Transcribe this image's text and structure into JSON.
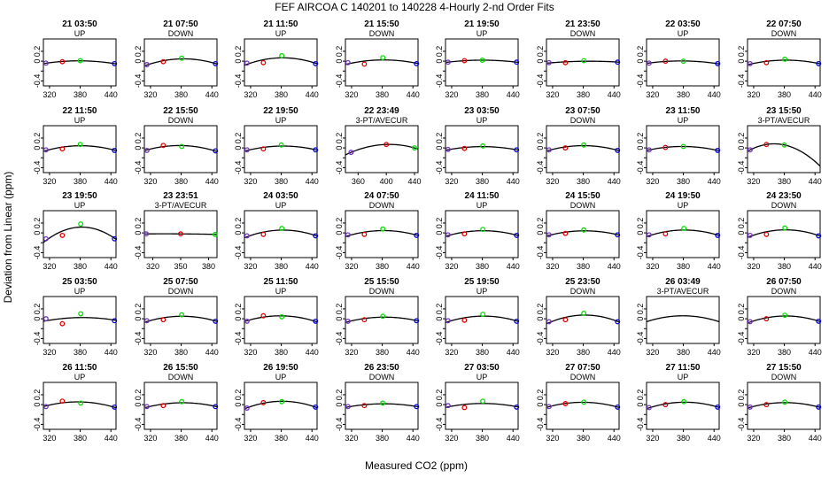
{
  "chart_data": {
    "type": "scatter",
    "title": "FEF   AIRCOA C   140201 to 140228   4-Hourly 2-nd Order Fits",
    "xlabel": "Measured CO2 (ppm)",
    "ylabel": "Deviation from Linear (ppm)",
    "ylim": [
      -0.5,
      0.45
    ],
    "yticks": [
      -0.4,
      -0.2,
      0.0,
      0.2
    ],
    "ytick_labels": [
      "-0.4",
      "",
      "0",
      "0.2"
    ],
    "default_xlim": [
      308,
      450
    ],
    "default_xticks": [
      320,
      380,
      440
    ],
    "point_colors": [
      "#7030c0",
      "#e00000",
      "#00dd00",
      "#0000cc"
    ],
    "grid": false,
    "panels": [
      {
        "title": "21 03:50",
        "note": "UP",
        "xlim": [
          308,
          450
        ],
        "xticks": [
          320,
          380,
          440
        ],
        "points": [
          [
            313,
            -0.04
          ],
          [
            345,
            -0.01
          ],
          [
            380,
            0.01
          ],
          [
            447,
            -0.05
          ]
        ]
      },
      {
        "title": "21 07:50",
        "note": "DOWN",
        "xlim": [
          308,
          450
        ],
        "xticks": [
          320,
          380,
          440
        ],
        "points": [
          [
            313,
            -0.07
          ],
          [
            345,
            -0.01
          ],
          [
            381,
            0.06
          ],
          [
            447,
            -0.05
          ]
        ]
      },
      {
        "title": "21 11:50",
        "note": "UP",
        "xlim": [
          308,
          450
        ],
        "xticks": [
          320,
          380,
          440
        ],
        "points": [
          [
            313,
            -0.04
          ],
          [
            345,
            -0.03
          ],
          [
            381,
            0.11
          ],
          [
            447,
            -0.05
          ]
        ]
      },
      {
        "title": "21 15:50",
        "note": "DOWN",
        "xlim": [
          308,
          450
        ],
        "xticks": [
          320,
          380,
          440
        ],
        "points": [
          [
            313,
            -0.03
          ],
          [
            345,
            -0.06
          ],
          [
            381,
            0.07
          ],
          [
            447,
            -0.05
          ]
        ]
      },
      {
        "title": "21 19:50",
        "note": "UP",
        "xlim": [
          308,
          450
        ],
        "xticks": [
          320,
          380,
          440
        ],
        "points": [
          [
            313,
            -0.02
          ],
          [
            345,
            0.01
          ],
          [
            380,
            0.02
          ],
          [
            447,
            -0.02
          ]
        ]
      },
      {
        "title": "21 23:50",
        "note": "DOWN",
        "xlim": [
          308,
          450
        ],
        "xticks": [
          320,
          380,
          440
        ],
        "points": [
          [
            313,
            -0.03
          ],
          [
            345,
            -0.03
          ],
          [
            381,
            0.01
          ],
          [
            447,
            -0.02
          ]
        ]
      },
      {
        "title": "22 03:50",
        "note": "UP",
        "xlim": [
          308,
          450
        ],
        "xticks": [
          320,
          380,
          440
        ],
        "points": [
          [
            313,
            -0.04
          ],
          [
            345,
            0.0
          ],
          [
            380,
            0.0
          ],
          [
            447,
            -0.05
          ]
        ]
      },
      {
        "title": "22 07:50",
        "note": "DOWN",
        "xlim": [
          308,
          450
        ],
        "xticks": [
          320,
          380,
          440
        ],
        "points": [
          [
            313,
            -0.05
          ],
          [
            345,
            -0.03
          ],
          [
            381,
            0.04
          ],
          [
            447,
            -0.05
          ]
        ]
      },
      {
        "title": "22 11:50",
        "note": "UP",
        "xlim": [
          308,
          450
        ],
        "xticks": [
          320,
          380,
          440
        ],
        "points": [
          [
            313,
            -0.04
          ],
          [
            345,
            -0.02
          ],
          [
            380,
            0.07
          ],
          [
            447,
            -0.05
          ]
        ]
      },
      {
        "title": "22 15:50",
        "note": "DOWN",
        "xlim": [
          308,
          450
        ],
        "xticks": [
          320,
          380,
          440
        ],
        "points": [
          [
            313,
            -0.05
          ],
          [
            345,
            0.05
          ],
          [
            381,
            0.03
          ],
          [
            447,
            -0.06
          ]
        ]
      },
      {
        "title": "22 19:50",
        "note": "UP",
        "xlim": [
          308,
          450
        ],
        "xticks": [
          320,
          380,
          440
        ],
        "points": [
          [
            313,
            -0.04
          ],
          [
            345,
            -0.02
          ],
          [
            380,
            0.06
          ],
          [
            447,
            -0.04
          ]
        ]
      },
      {
        "title": "22 23:49",
        "note": "3-PT/AVECUR",
        "xlim": [
          342,
          445
        ],
        "xticks": [
          360,
          400,
          440
        ],
        "points": [
          [
            350,
            -0.09
          ],
          [
            400,
            0.07
          ],
          [
            440,
            0.0
          ]
        ]
      },
      {
        "title": "23 03:50",
        "note": "UP",
        "xlim": [
          308,
          450
        ],
        "xticks": [
          320,
          380,
          440
        ],
        "points": [
          [
            313,
            -0.03
          ],
          [
            345,
            -0.01
          ],
          [
            381,
            0.04
          ],
          [
            447,
            -0.04
          ]
        ]
      },
      {
        "title": "23 07:50",
        "note": "DOWN",
        "xlim": [
          308,
          450
        ],
        "xticks": [
          320,
          380,
          440
        ],
        "points": [
          [
            313,
            -0.04
          ],
          [
            345,
            0.0
          ],
          [
            381,
            0.06
          ],
          [
            447,
            -0.05
          ]
        ]
      },
      {
        "title": "23 11:50",
        "note": "UP",
        "xlim": [
          308,
          450
        ],
        "xticks": [
          320,
          380,
          440
        ],
        "points": [
          [
            313,
            -0.04
          ],
          [
            345,
            0.01
          ],
          [
            380,
            0.03
          ],
          [
            447,
            -0.05
          ]
        ]
      },
      {
        "title": "23 15:50",
        "note": "3-PT/AVECUR",
        "xlim": [
          308,
          450
        ],
        "xticks": [
          320,
          380,
          440
        ],
        "points": [
          [
            313,
            -0.04
          ],
          [
            345,
            0.07
          ],
          [
            380,
            0.06
          ]
        ]
      },
      {
        "title": "23 19:50",
        "note": "UP",
        "xlim": [
          308,
          450
        ],
        "xticks": [
          320,
          380,
          440
        ],
        "points": [
          [
            313,
            -0.12
          ],
          [
            345,
            -0.05
          ],
          [
            381,
            0.18
          ],
          [
            447,
            -0.12
          ]
        ]
      },
      {
        "title": "23 23:51",
        "note": "3-PT/AVECUR",
        "xlim": [
          311,
          389
        ],
        "xticks": [
          320,
          350,
          380
        ],
        "points": [
          [
            313,
            -0.02
          ],
          [
            350,
            -0.02
          ],
          [
            387,
            -0.03
          ]
        ]
      },
      {
        "title": "24 03:50",
        "note": "UP",
        "xlim": [
          308,
          450
        ],
        "xticks": [
          320,
          380,
          440
        ],
        "points": [
          [
            313,
            -0.06
          ],
          [
            345,
            -0.03
          ],
          [
            381,
            0.09
          ],
          [
            447,
            -0.06
          ]
        ]
      },
      {
        "title": "24 07:50",
        "note": "DOWN",
        "xlim": [
          308,
          450
        ],
        "xticks": [
          320,
          380,
          440
        ],
        "points": [
          [
            313,
            -0.04
          ],
          [
            345,
            -0.03
          ],
          [
            381,
            0.08
          ],
          [
            447,
            -0.05
          ]
        ]
      },
      {
        "title": "24 11:50",
        "note": "UP",
        "xlim": [
          308,
          450
        ],
        "xticks": [
          320,
          380,
          440
        ],
        "points": [
          [
            313,
            -0.04
          ],
          [
            345,
            -0.02
          ],
          [
            381,
            0.07
          ],
          [
            447,
            -0.05
          ]
        ]
      },
      {
        "title": "24 15:50",
        "note": "DOWN",
        "xlim": [
          308,
          450
        ],
        "xticks": [
          320,
          380,
          440
        ],
        "points": [
          [
            313,
            -0.04
          ],
          [
            345,
            -0.01
          ],
          [
            381,
            0.06
          ],
          [
            447,
            -0.04
          ]
        ]
      },
      {
        "title": "24 19:50",
        "note": "UP",
        "xlim": [
          308,
          450
        ],
        "xticks": [
          320,
          380,
          440
        ],
        "points": [
          [
            313,
            -0.04
          ],
          [
            345,
            -0.02
          ],
          [
            381,
            0.09
          ],
          [
            447,
            -0.05
          ]
        ]
      },
      {
        "title": "24 23:50",
        "note": "DOWN",
        "xlim": [
          308,
          450
        ],
        "xticks": [
          320,
          380,
          440
        ],
        "points": [
          [
            313,
            -0.05
          ],
          [
            345,
            -0.03
          ],
          [
            381,
            0.1
          ],
          [
            447,
            -0.06
          ]
        ]
      },
      {
        "title": "25 03:50",
        "note": "UP",
        "xlim": [
          308,
          450
        ],
        "xticks": [
          320,
          380,
          440
        ],
        "points": [
          [
            313,
            0.0
          ],
          [
            345,
            -0.1
          ],
          [
            381,
            0.1
          ],
          [
            447,
            -0.04
          ]
        ]
      },
      {
        "title": "25 07:50",
        "note": "DOWN",
        "xlim": [
          308,
          450
        ],
        "xticks": [
          320,
          380,
          440
        ],
        "points": [
          [
            313,
            -0.04
          ],
          [
            345,
            -0.02
          ],
          [
            381,
            0.08
          ],
          [
            447,
            -0.05
          ]
        ]
      },
      {
        "title": "25 11:50",
        "note": "UP",
        "xlim": [
          308,
          450
        ],
        "xticks": [
          320,
          380,
          440
        ],
        "points": [
          [
            313,
            -0.05
          ],
          [
            345,
            0.06
          ],
          [
            381,
            0.04
          ],
          [
            447,
            -0.05
          ]
        ]
      },
      {
        "title": "25 15:50",
        "note": "DOWN",
        "xlim": [
          308,
          450
        ],
        "xticks": [
          320,
          380,
          440
        ],
        "points": [
          [
            313,
            -0.05
          ],
          [
            345,
            -0.02
          ],
          [
            381,
            0.05
          ],
          [
            447,
            -0.04
          ]
        ]
      },
      {
        "title": "25 19:50",
        "note": "UP",
        "xlim": [
          308,
          450
        ],
        "xticks": [
          320,
          380,
          440
        ],
        "points": [
          [
            313,
            -0.04
          ],
          [
            345,
            -0.03
          ],
          [
            381,
            0.09
          ],
          [
            447,
            -0.05
          ]
        ]
      },
      {
        "title": "25 23:50",
        "note": "DOWN",
        "xlim": [
          308,
          450
        ],
        "xticks": [
          320,
          380,
          440
        ],
        "points": [
          [
            313,
            -0.06
          ],
          [
            345,
            -0.02
          ],
          [
            381,
            0.11
          ],
          [
            447,
            -0.06
          ]
        ]
      },
      {
        "title": "26 03:49",
        "note": "3-PT/AVECUR",
        "xlim": [
          308,
          450
        ],
        "xticks": [
          320,
          380,
          440
        ],
        "points": []
      },
      {
        "title": "26 07:50",
        "note": "DOWN",
        "xlim": [
          308,
          450
        ],
        "xticks": [
          320,
          380,
          440
        ],
        "points": [
          [
            313,
            -0.06
          ],
          [
            345,
            0.0
          ],
          [
            381,
            0.07
          ],
          [
            447,
            -0.05
          ]
        ]
      },
      {
        "title": "26 11:50",
        "note": "UP",
        "xlim": [
          308,
          450
        ],
        "xticks": [
          320,
          380,
          440
        ],
        "points": [
          [
            313,
            -0.04
          ],
          [
            345,
            0.07
          ],
          [
            381,
            0.03
          ],
          [
            447,
            -0.05
          ]
        ]
      },
      {
        "title": "26 15:50",
        "note": "DOWN",
        "xlim": [
          308,
          450
        ],
        "xticks": [
          320,
          380,
          440
        ],
        "points": [
          [
            313,
            -0.04
          ],
          [
            345,
            -0.02
          ],
          [
            381,
            0.06
          ],
          [
            447,
            -0.04
          ]
        ]
      },
      {
        "title": "26 19:50",
        "note": "UP",
        "xlim": [
          308,
          450
        ],
        "xticks": [
          320,
          380,
          440
        ],
        "points": [
          [
            313,
            -0.07
          ],
          [
            345,
            0.04
          ],
          [
            381,
            0.06
          ],
          [
            447,
            -0.05
          ]
        ]
      },
      {
        "title": "26 23:50",
        "note": "DOWN",
        "xlim": [
          308,
          450
        ],
        "xticks": [
          320,
          380,
          440
        ],
        "points": [
          [
            313,
            -0.04
          ],
          [
            345,
            -0.02
          ],
          [
            381,
            0.03
          ],
          [
            447,
            -0.04
          ]
        ]
      },
      {
        "title": "27 03:50",
        "note": "UP",
        "xlim": [
          308,
          450
        ],
        "xticks": [
          320,
          380,
          440
        ],
        "points": [
          [
            313,
            -0.02
          ],
          [
            345,
            -0.06
          ],
          [
            381,
            0.07
          ],
          [
            447,
            -0.05
          ]
        ]
      },
      {
        "title": "27 07:50",
        "note": "DOWN",
        "xlim": [
          308,
          450
        ],
        "xticks": [
          320,
          380,
          440
        ],
        "points": [
          [
            313,
            -0.04
          ],
          [
            345,
            0.02
          ],
          [
            381,
            0.05
          ],
          [
            447,
            -0.05
          ]
        ]
      },
      {
        "title": "27 11:50",
        "note": "UP",
        "xlim": [
          308,
          450
        ],
        "xticks": [
          320,
          380,
          440
        ],
        "points": [
          [
            313,
            -0.06
          ],
          [
            345,
            0.0
          ],
          [
            381,
            0.06
          ],
          [
            447,
            -0.05
          ]
        ]
      },
      {
        "title": "27 15:50",
        "note": "DOWN",
        "xlim": [
          308,
          450
        ],
        "xticks": [
          320,
          380,
          440
        ],
        "points": [
          [
            313,
            -0.05
          ],
          [
            345,
            0.0
          ],
          [
            381,
            0.05
          ],
          [
            447,
            -0.05
          ]
        ]
      }
    ]
  }
}
